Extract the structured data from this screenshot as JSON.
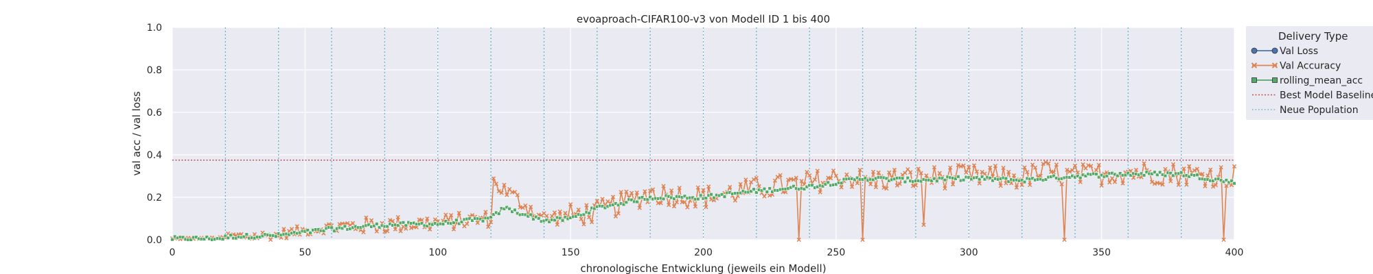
{
  "chart_data": {
    "type": "line",
    "title": "evoaproach-CIFAR100-v3 von Modell ID 1 bis 400",
    "xlabel": "chronologische Entwicklung (jeweils ein Modell)",
    "ylabel": "val acc / val loss",
    "xlim": [
      0,
      400
    ],
    "ylim": [
      0,
      1.0
    ],
    "x_ticks": [
      "0",
      "50",
      "100",
      "150",
      "200",
      "250",
      "300",
      "350",
      "400"
    ],
    "y_ticks": [
      "0.0",
      "0.2",
      "0.4",
      "0.6",
      "0.8",
      "1.0"
    ],
    "grid": true,
    "legend": {
      "title": "Delivery Type",
      "placement": "outside right",
      "entries": [
        "Val Loss",
        "Val Accuracy",
        "rolling_mean_acc",
        "Best Model Baseline",
        "Neue Population"
      ]
    },
    "best_model_baseline": 0.375,
    "neue_population_x": [
      20,
      40,
      60,
      80,
      100,
      120,
      140,
      160,
      180,
      200,
      220,
      240,
      260,
      280,
      300,
      320,
      340,
      360,
      380
    ],
    "val_accuracy_anchors": {
      "x": [
        0,
        18,
        22,
        40,
        42,
        60,
        80,
        100,
        120,
        121,
        140,
        160,
        180,
        200,
        220,
        240,
        255,
        260,
        280,
        300,
        320,
        328,
        340,
        360,
        380,
        400
      ],
      "y": [
        0.005,
        0.008,
        0.015,
        0.02,
        0.03,
        0.06,
        0.07,
        0.08,
        0.1,
        0.27,
        0.1,
        0.13,
        0.22,
        0.2,
        0.24,
        0.27,
        0.3,
        0.28,
        0.29,
        0.3,
        0.29,
        0.32,
        0.3,
        0.32,
        0.31,
        0.3
      ]
    },
    "rolling_mean_acc_anchors": {
      "x": [
        0,
        18,
        22,
        40,
        60,
        80,
        100,
        120,
        125,
        140,
        150,
        160,
        180,
        200,
        220,
        240,
        260,
        280,
        300,
        320,
        340,
        360,
        380,
        400
      ],
      "y": [
        0.005,
        0.006,
        0.015,
        0.02,
        0.05,
        0.07,
        0.075,
        0.1,
        0.15,
        0.09,
        0.1,
        0.15,
        0.2,
        0.2,
        0.23,
        0.25,
        0.29,
        0.28,
        0.29,
        0.28,
        0.3,
        0.31,
        0.31,
        0.27
      ]
    },
    "val_accuracy_dips": {
      "x": [
        236,
        260,
        283,
        336,
        396
      ],
      "y": [
        0.0,
        0.0,
        0.07,
        0.0,
        0.0
      ]
    },
    "val_loss": []
  },
  "colors": {
    "background": "#EAEAF2",
    "grid": "#FFFFFF",
    "val_loss": "#4C72B0",
    "val_accuracy": "#DD8452",
    "rolling_mean_acc": "#55A868",
    "best_model_baseline": "#C44E52",
    "neue_population": "#64B5CD"
  }
}
